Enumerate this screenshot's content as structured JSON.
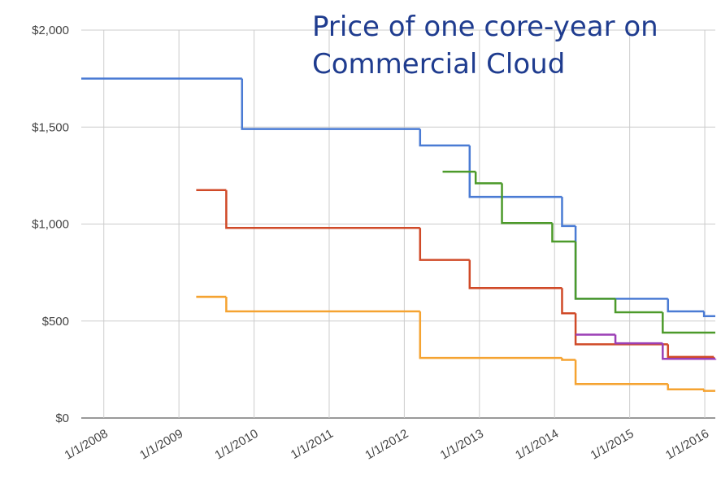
{
  "chart_data": {
    "type": "line",
    "step": "after",
    "title": [
      "Price of one core-year on",
      "Commercial Cloud"
    ],
    "title_color": "#1f3c8f",
    "xlim": [
      2007.7,
      2016.14
    ],
    "xticks": [
      {
        "value": 2008,
        "label": "1/1/2008"
      },
      {
        "value": 2009,
        "label": "1/1/2009"
      },
      {
        "value": 2010,
        "label": "1/1/2010"
      },
      {
        "value": 2011,
        "label": "1/1/2011"
      },
      {
        "value": 2012,
        "label": "1/1/2012"
      },
      {
        "value": 2013,
        "label": "1/1/2013"
      },
      {
        "value": 2014,
        "label": "1/1/2014"
      },
      {
        "value": 2015,
        "label": "1/1/2015"
      },
      {
        "value": 2016,
        "label": "1/1/2016"
      }
    ],
    "ylim": [
      0,
      2000
    ],
    "yticks": [
      {
        "value": 0,
        "label": "$0"
      },
      {
        "value": 500,
        "label": "$500"
      },
      {
        "value": 1000,
        "label": "$1,000"
      },
      {
        "value": 1500,
        "label": "$1,500"
      },
      {
        "value": 2000,
        "label": "$2,000"
      }
    ],
    "grid": true,
    "series": [
      {
        "color": "#4a7bd4",
        "x": [
          2007.7,
          2009.84,
          2012.21,
          2012.87,
          2014.1,
          2014.28,
          2015.51,
          2015.99,
          2016.14
        ],
        "values": [
          1750,
          1490,
          1405,
          1140,
          990,
          615,
          550,
          525,
          525
        ]
      },
      {
        "color": "#d04a28",
        "x": [
          2009.23,
          2009.63,
          2012.21,
          2012.87,
          2014.1,
          2014.28,
          2015.51,
          2016.12
        ],
        "values": [
          1175,
          980,
          815,
          670,
          540,
          380,
          315,
          310
        ]
      },
      {
        "color": "#f5a331",
        "x": [
          2009.23,
          2009.63,
          2012.21,
          2014.1,
          2014.28,
          2015.51,
          2015.99,
          2016.14
        ],
        "values": [
          625,
          550,
          310,
          300,
          175,
          148,
          140,
          140
        ]
      },
      {
        "color": "#4c9a2a",
        "x": [
          2012.51,
          2012.95,
          2013.3,
          2013.97,
          2014.28,
          2014.81,
          2015.44,
          2016.14
        ],
        "values": [
          1270,
          1210,
          1005,
          910,
          615,
          545,
          440,
          440
        ]
      },
      {
        "color": "#9b3fb5",
        "x": [
          2014.28,
          2014.81,
          2015.44,
          2016.14
        ],
        "values": [
          430,
          385,
          305,
          300
        ]
      }
    ]
  }
}
